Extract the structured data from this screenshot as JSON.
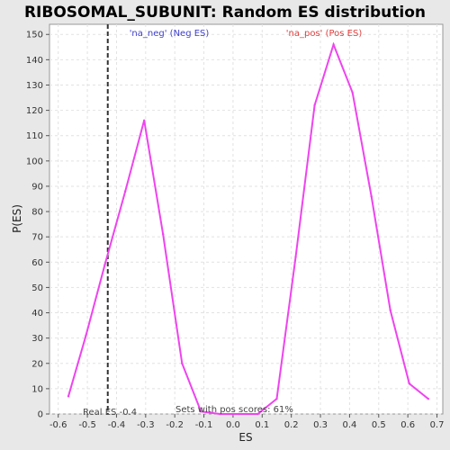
{
  "chart_data": {
    "type": "line",
    "title": "RIBOSOMAL_SUBUNIT: Random ES distribution",
    "xlabel": "ES",
    "ylabel": "P(ES)",
    "xlim": [
      -0.63,
      0.72
    ],
    "ylim": [
      0,
      154
    ],
    "xticks": [
      -0.6,
      -0.5,
      -0.4,
      -0.3,
      -0.2,
      -0.1,
      0.0,
      0.1,
      0.2,
      0.3,
      0.4,
      0.5,
      0.6,
      0.7
    ],
    "xtick_labels": [
      "-0.6",
      "-0.5",
      "-0.4",
      "-0.3",
      "-0.2",
      "-0.1",
      "0.0",
      "0.1",
      "0.2",
      "0.3",
      "0.4",
      "0.5",
      "0.6",
      "0.7"
    ],
    "yticks": [
      0,
      10,
      20,
      30,
      40,
      50,
      60,
      70,
      80,
      90,
      100,
      110,
      120,
      130,
      140,
      150
    ],
    "ytick_labels": [
      "0",
      "10",
      "20",
      "30",
      "40",
      "50",
      "60",
      "70",
      "80",
      "90",
      "100",
      "110",
      "120",
      "130",
      "140",
      "150"
    ],
    "grid": true,
    "line_color": "#ee44ee",
    "x": [
      -0.565,
      -0.505,
      -0.44,
      -0.37,
      -0.305,
      -0.24,
      -0.175,
      -0.11,
      -0.045,
      0.02,
      0.085,
      0.15,
      0.215,
      0.28,
      0.345,
      0.41,
      0.475,
      0.54,
      0.605,
      0.67
    ],
    "values": [
      7,
      31,
      59,
      88,
      116,
      71,
      20,
      1,
      0,
      0,
      0,
      6,
      62,
      122,
      146,
      127,
      86,
      41,
      12,
      6
    ],
    "legend": {
      "neg_label": "'na_neg' (Neg ES)",
      "pos_label": "'na_pos' (Pos ES)",
      "neg_color": "#4040cc",
      "pos_color": "#e04040"
    },
    "real_es": {
      "value": -0.43,
      "label": "Real ES -0.4"
    },
    "annotation": "Sets with pos scores: 61%"
  }
}
